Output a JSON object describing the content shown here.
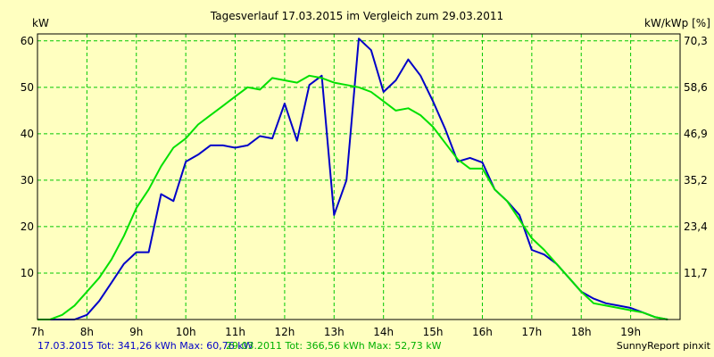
{
  "chart_data": {
    "type": "line",
    "title": "Tagesverlauf 17.03.2015 im Vergleich zum 29.03.2011",
    "ylabel_left": "kW",
    "ylabel_right": "kW/kWp [%]",
    "x_ticks": [
      "7h",
      "8h",
      "9h",
      "10h",
      "11h",
      "12h",
      "13h",
      "14h",
      "15h",
      "16h",
      "17h",
      "18h",
      "19h"
    ],
    "x_range": [
      7,
      20
    ],
    "y_ticks_left": [
      "10",
      "20",
      "30",
      "40",
      "50",
      "60"
    ],
    "y_ticks_right": [
      "11,7",
      "23,4",
      "35,2",
      "46,9",
      "58,6",
      "70,3"
    ],
    "ylim": [
      0,
      61.5
    ],
    "grid": true,
    "series": [
      {
        "name": "17.03.2015",
        "color": "#0000c8",
        "x": [
          7.0,
          7.75,
          8.0,
          8.25,
          8.5,
          8.75,
          9.0,
          9.25,
          9.5,
          9.75,
          10.0,
          10.25,
          10.5,
          10.75,
          11.0,
          11.25,
          11.5,
          11.75,
          12.0,
          12.25,
          12.5,
          12.75,
          13.0,
          13.25,
          13.5,
          13.75,
          14.0,
          14.25,
          14.5,
          14.75,
          15.0,
          15.25,
          15.5,
          15.75,
          16.0,
          16.25,
          16.5,
          16.75,
          17.0,
          17.25,
          17.5,
          17.75,
          18.0,
          18.25,
          18.5,
          18.75,
          19.0,
          19.25,
          19.5,
          19.75
        ],
        "values": [
          0,
          0,
          1,
          4,
          8,
          12,
          14.5,
          14.5,
          27,
          25.5,
          34,
          35.5,
          37.5,
          37.5,
          37,
          37.5,
          39.5,
          39,
          46.5,
          38.5,
          50.5,
          52.5,
          22.5,
          30,
          60.5,
          58,
          49,
          51.5,
          56,
          52.5,
          47,
          41,
          34,
          34.8,
          33.8,
          28,
          25.5,
          22.5,
          15,
          14,
          12,
          9,
          6,
          4.5,
          3.5,
          3,
          2.5,
          1.5,
          0.5,
          0
        ]
      },
      {
        "name": "29.03.2011",
        "color": "#00e000",
        "x": [
          7.0,
          7.25,
          7.5,
          7.75,
          8.0,
          8.25,
          8.5,
          8.75,
          9.0,
          9.25,
          9.5,
          9.75,
          10.0,
          10.25,
          10.5,
          10.75,
          11.0,
          11.25,
          11.5,
          11.75,
          12.0,
          12.25,
          12.5,
          12.75,
          13.0,
          13.25,
          13.5,
          13.75,
          14.0,
          14.25,
          14.5,
          14.75,
          15.0,
          15.25,
          15.5,
          15.75,
          16.0,
          16.25,
          16.5,
          16.75,
          17.0,
          17.25,
          17.5,
          17.75,
          18.0,
          18.25,
          18.5,
          18.75,
          19.0,
          19.25,
          19.5,
          19.75
        ],
        "values": [
          0,
          0,
          1,
          3,
          6,
          9,
          13,
          18,
          24,
          28,
          33,
          37,
          39,
          42,
          44,
          46,
          48,
          50,
          49.5,
          52,
          51.5,
          51,
          52.5,
          52,
          51,
          50.5,
          50,
          49,
          47,
          45,
          45.5,
          44,
          41.5,
          38,
          34.5,
          32.5,
          32.5,
          28,
          25.5,
          21.5,
          17.5,
          15,
          12,
          9,
          6,
          3.5,
          3,
          2.5,
          2,
          1.5,
          0.5,
          0
        ]
      }
    ]
  },
  "footer": {
    "legend1": "17.03.2015 Tot: 341,26 kWh Max: 60,76 kW",
    "legend2": "29.03.2011 Tot: 366,56 kWh Max: 52,73 kW",
    "credit": "SunnyReport pinxit"
  },
  "colors": {
    "background": "#ffffc0",
    "grid": "#00c800",
    "axis": "#000000"
  }
}
